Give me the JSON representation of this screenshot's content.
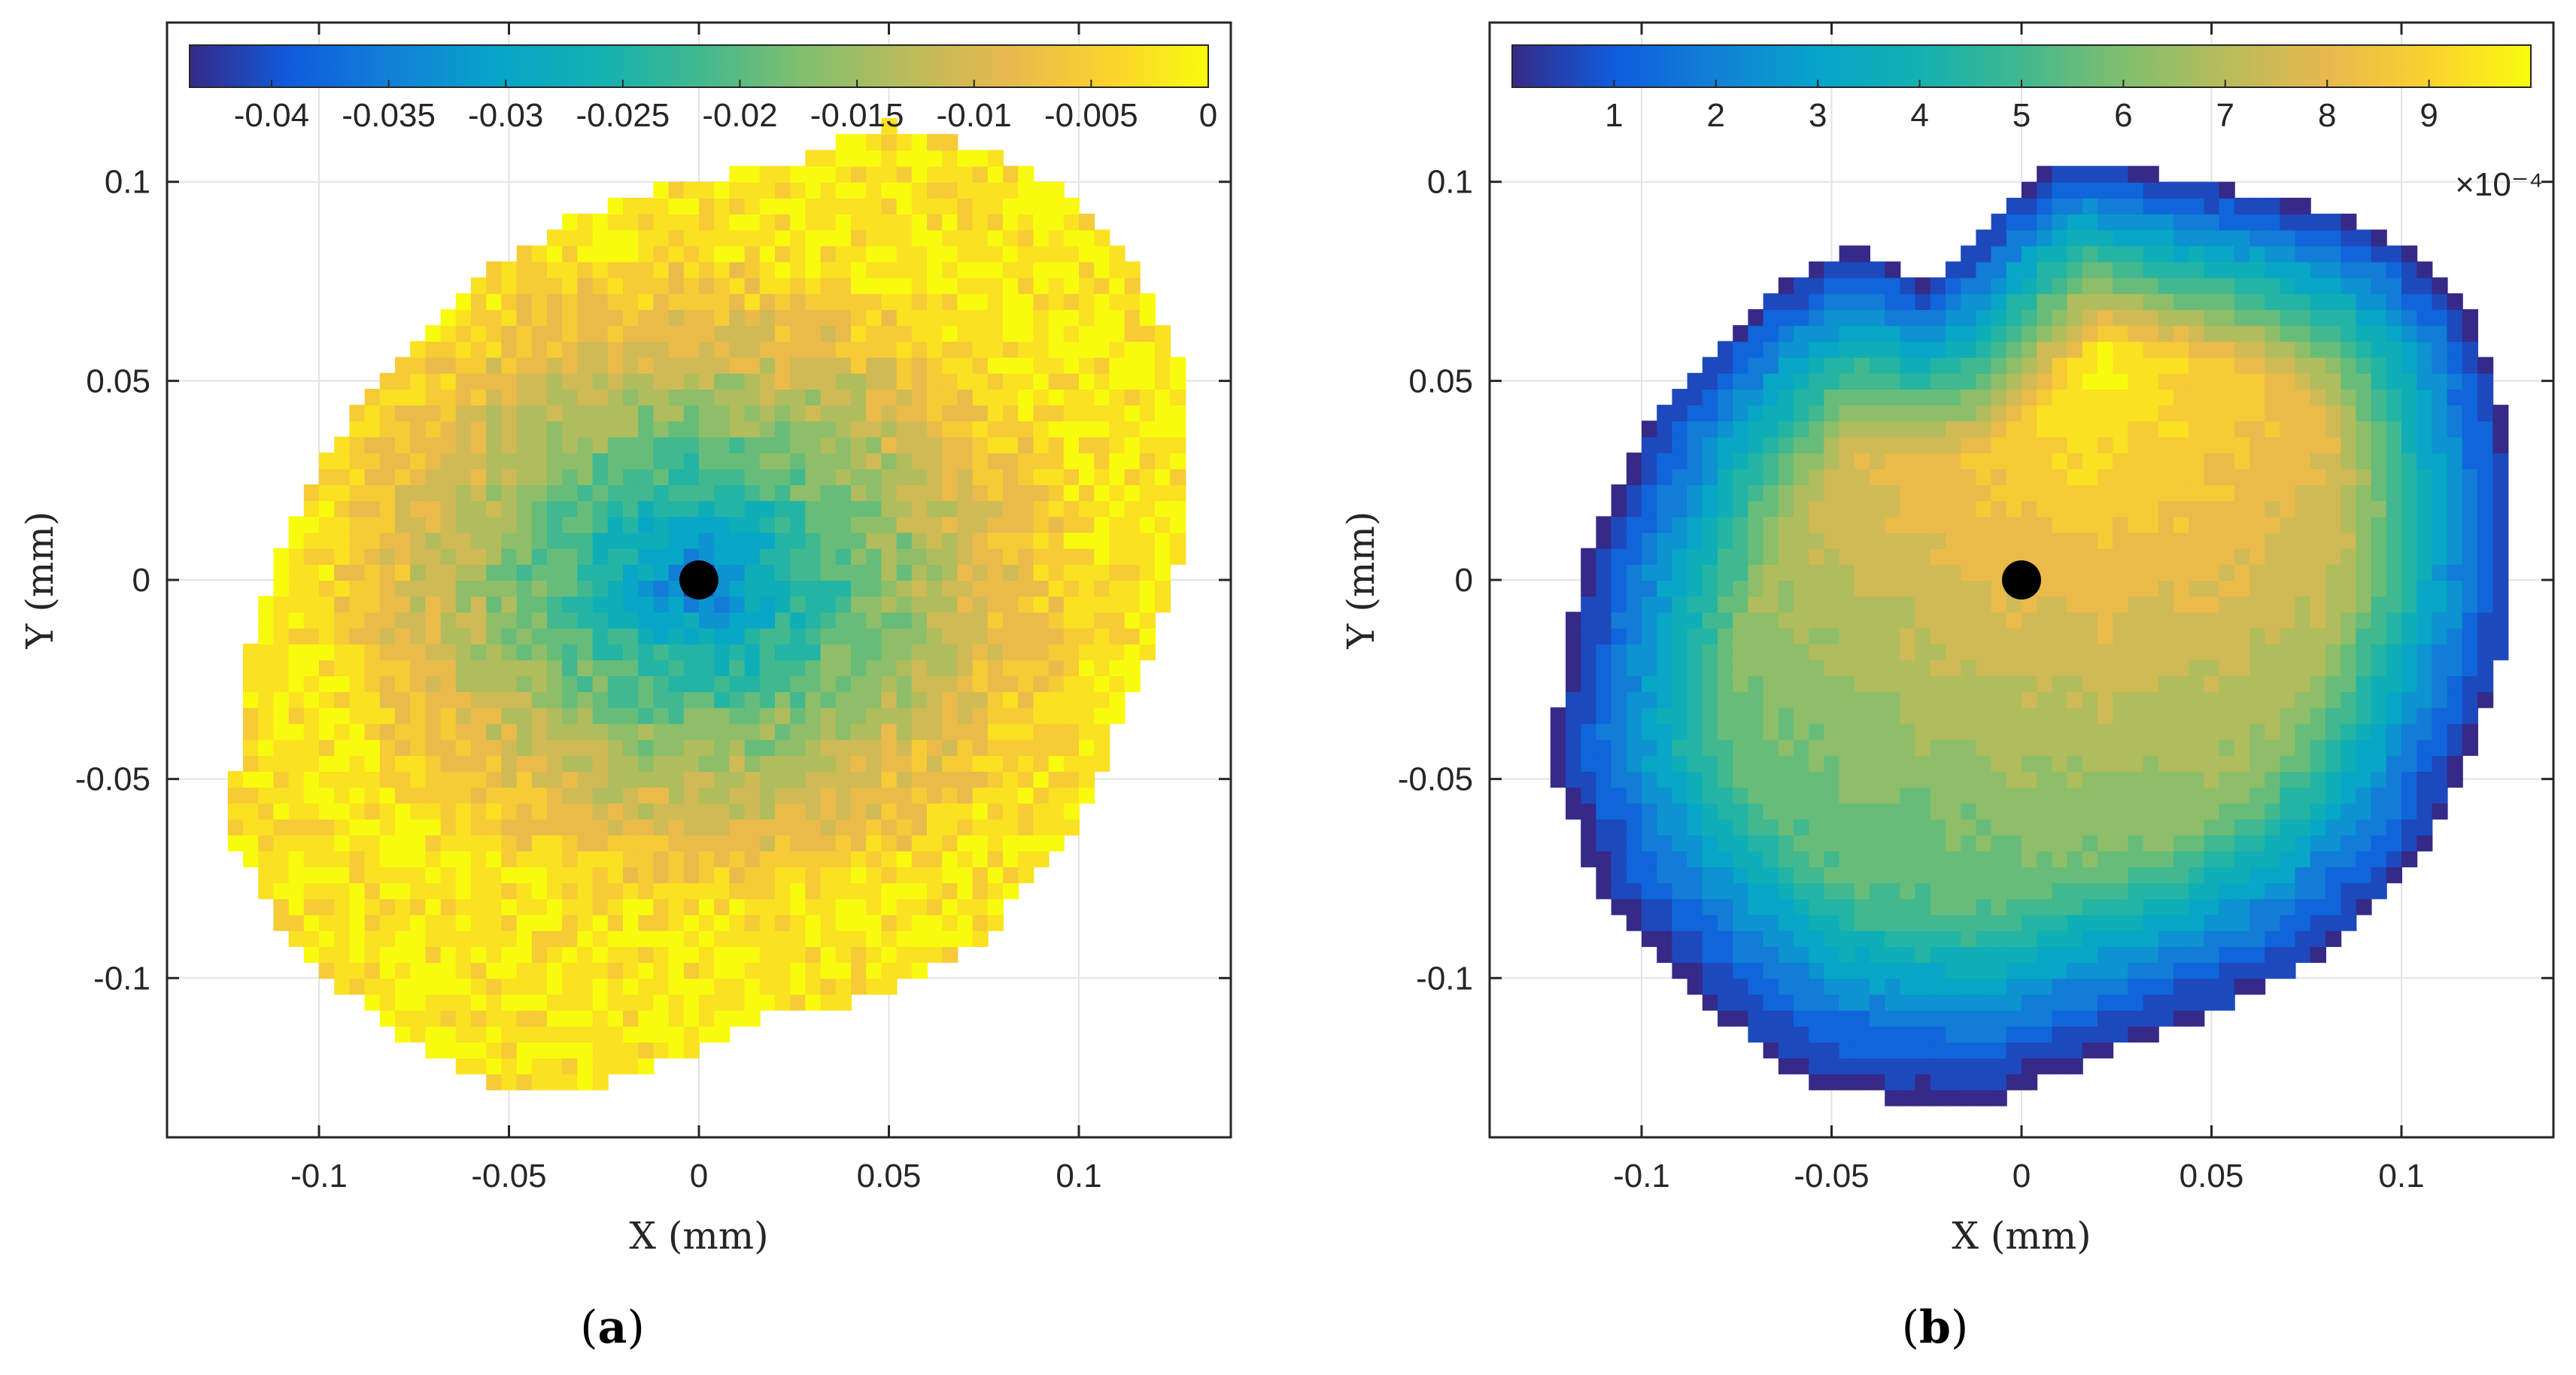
{
  "chart_data": [
    {
      "type": "heatmap",
      "panel_label": "(a)",
      "subplot_letter": "a",
      "xlabel": "X (mm)",
      "ylabel": "Y (mm)",
      "xlim": [
        -0.14,
        0.14
      ],
      "ylim": [
        -0.14,
        0.14
      ],
      "xticks": [
        -0.1,
        -0.05,
        0,
        0.05,
        0.1
      ],
      "xtick_labels": [
        "-0.1",
        "-0.05",
        "0",
        "0.05",
        "0.1"
      ],
      "yticks": [
        0.1,
        0.05,
        0,
        -0.05,
        -0.1
      ],
      "ytick_labels": [
        "0.1",
        "0.05",
        "0",
        "-0.05",
        "-0.1"
      ],
      "grid": true,
      "colorbar": {
        "location": "top-inside",
        "range": [
          -0.0435,
          0
        ],
        "ticks": [
          -0.04,
          -0.035,
          -0.03,
          -0.025,
          -0.02,
          -0.015,
          -0.01,
          -0.005,
          0
        ],
        "tick_labels": [
          "-0.04",
          "-0.035",
          "-0.03",
          "-0.025",
          "-0.02",
          "-0.015",
          "-0.01",
          "-0.005",
          "0"
        ],
        "exponent_label": ""
      },
      "marker": {
        "x": 0,
        "y": 0,
        "color": "#000000"
      },
      "field": {
        "description_values": "minimum -0.042 near origin, rising to about -0.002 at the domain edge",
        "center_value": -0.042,
        "edge_value": -0.002,
        "boundary_x": [
          -0.123,
          -0.108,
          -0.085,
          -0.06,
          -0.035,
          -0.005,
          0.015,
          0.045,
          0.075,
          0.1,
          0.118,
          0.13,
          0.13,
          0.115,
          0.095,
          0.07,
          0.05,
          0.025,
          -0.005,
          -0.035,
          -0.06,
          -0.085,
          -0.105,
          -0.12,
          -0.123
        ],
        "boundary_y": [
          -0.065,
          -0.09,
          -0.11,
          -0.125,
          -0.13,
          -0.12,
          -0.11,
          -0.105,
          -0.09,
          -0.06,
          -0.02,
          0.015,
          0.045,
          0.08,
          0.1,
          0.11,
          0.115,
          0.105,
          0.1,
          0.09,
          0.075,
          0.05,
          0.02,
          -0.02,
          -0.065
        ],
        "value_at_boundary": [
          -0.002,
          -0.003,
          -0.004,
          -0.004,
          -0.002,
          -0.002,
          -0.003,
          -0.003,
          -0.004,
          -0.004,
          -0.003,
          -0.003,
          -0.003,
          -0.003,
          -0.003,
          -0.003,
          -0.003,
          -0.004,
          -0.006,
          -0.008,
          -0.008,
          -0.005,
          -0.004,
          -0.003,
          -0.002
        ]
      }
    },
    {
      "type": "heatmap",
      "panel_label": "(b)",
      "subplot_letter": "b",
      "xlabel": "X (mm)",
      "ylabel": "Y (mm)",
      "xlim": [
        -0.14,
        0.14
      ],
      "ylim": [
        -0.14,
        0.14
      ],
      "xticks": [
        -0.1,
        -0.05,
        0,
        0.05,
        0.1
      ],
      "xtick_labels": [
        "-0.1",
        "-0.05",
        "0",
        "0.05",
        "0.1"
      ],
      "yticks": [
        0.1,
        0.05,
        0,
        -0.05,
        -0.1
      ],
      "ytick_labels": [
        "0.1",
        "0.05",
        "0",
        "-0.05",
        "-0.1"
      ],
      "grid": true,
      "colorbar": {
        "location": "top-inside",
        "range": [
          0,
          0.001
        ],
        "ticks": [
          0.0001,
          0.0002,
          0.0003,
          0.0004,
          0.0005,
          0.0006,
          0.0007,
          0.0008,
          0.0009
        ],
        "tick_labels": [
          "1",
          "2",
          "3",
          "4",
          "5",
          "6",
          "7",
          "8",
          "9"
        ],
        "exponent_label": "×10⁻⁴"
      },
      "marker": {
        "x": 0,
        "y": 0,
        "color": "#000000"
      },
      "field": {
        "description_values": "maximum about 0.00098 in the upper-right region, decreasing to near 0 at the domain boundary",
        "peak_x": 0.02,
        "peak_y": 0.055,
        "peak_value": 0.00098,
        "edge_value": 2e-05,
        "boundary_x": [
          -0.125,
          -0.11,
          -0.085,
          -0.06,
          -0.035,
          -0.005,
          0.02,
          0.05,
          0.08,
          0.105,
          0.12,
          0.13,
          0.13,
          0.12,
          0.1,
          0.075,
          0.045,
          0.02,
          0.01,
          -0.005,
          -0.025,
          -0.045,
          -0.07,
          -0.095,
          -0.115,
          -0.125
        ],
        "boundary_y": [
          -0.045,
          -0.08,
          -0.105,
          -0.125,
          -0.13,
          -0.13,
          -0.12,
          -0.11,
          -0.095,
          -0.07,
          -0.04,
          -0.01,
          0.03,
          0.065,
          0.085,
          0.095,
          0.1,
          0.105,
          0.105,
          0.095,
          0.075,
          0.085,
          0.07,
          0.045,
          0.005,
          -0.045
        ]
      }
    }
  ]
}
